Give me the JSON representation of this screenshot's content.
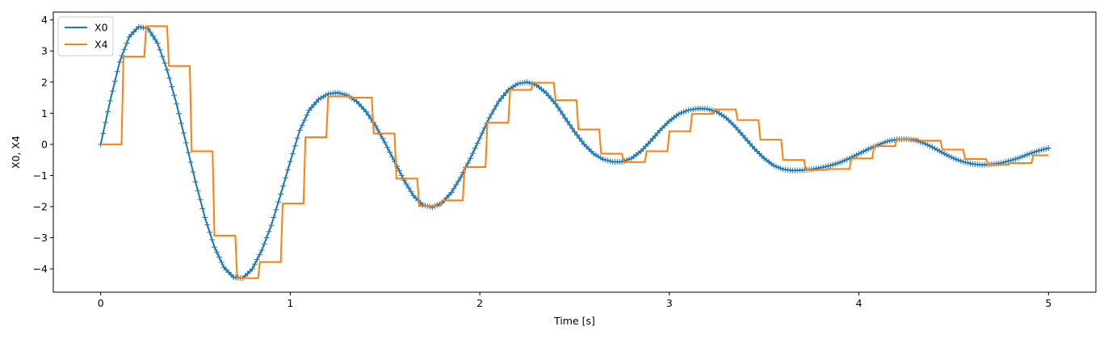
{
  "chart_data": {
    "type": "line",
    "title": "",
    "xlabel": "Time [s]",
    "ylabel": "X0, X4",
    "xlim": [
      -0.25,
      5.25
    ],
    "ylim": [
      -4.75,
      4.25
    ],
    "xticks": [
      0,
      1,
      2,
      3,
      4,
      5
    ],
    "yticks": [
      -4,
      -3,
      -2,
      -1,
      0,
      1,
      2,
      3,
      4
    ],
    "xtick_labels": [
      "0",
      "1",
      "2",
      "3",
      "4",
      "5"
    ],
    "ytick_labels": [
      "−4",
      "−3",
      "−2",
      "−1",
      "0",
      "1",
      "2",
      "3",
      "4"
    ],
    "grid": false,
    "legend_position": "top-left",
    "series": [
      {
        "name": "X0",
        "style": "line with plus markers",
        "color": "#1f77b4",
        "x": [
          0.0,
          0.05,
          0.1,
          0.15,
          0.2,
          0.25,
          0.3,
          0.35,
          0.4,
          0.45,
          0.5,
          0.55,
          0.6,
          0.65,
          0.7,
          0.75,
          0.8,
          0.85,
          0.9,
          0.95,
          1.0,
          1.05,
          1.1,
          1.15,
          1.2,
          1.25,
          1.3,
          1.35,
          1.4,
          1.45,
          1.5,
          1.55,
          1.6,
          1.65,
          1.7,
          1.75,
          1.8,
          1.85,
          1.9,
          1.95,
          2.0,
          2.05,
          2.1,
          2.15,
          2.2,
          2.25,
          2.3,
          2.35,
          2.4,
          2.45,
          2.5,
          2.55,
          2.6,
          2.65,
          2.7,
          2.75,
          2.8,
          2.85,
          2.9,
          2.95,
          3.0,
          3.05,
          3.1,
          3.15,
          3.2,
          3.25,
          3.3,
          3.35,
          3.4,
          3.45,
          3.5,
          3.55,
          3.6,
          3.65,
          3.7,
          3.75,
          3.8,
          3.85,
          3.9,
          3.95,
          4.0,
          4.05,
          4.1,
          4.15,
          4.2,
          4.25,
          4.3,
          4.35,
          4.4,
          4.45,
          4.5,
          4.55,
          4.6,
          4.65,
          4.7,
          4.75,
          4.8,
          4.85,
          4.9,
          4.95,
          5.0
        ],
        "values": [
          0.0,
          1.4,
          2.65,
          3.45,
          3.78,
          3.72,
          3.25,
          2.4,
          1.3,
          0.05,
          -1.2,
          -2.35,
          -3.3,
          -3.95,
          -4.27,
          -4.3,
          -4.0,
          -3.4,
          -2.6,
          -1.6,
          -0.55,
          0.45,
          1.1,
          1.45,
          1.62,
          1.66,
          1.58,
          1.38,
          1.05,
          0.6,
          0.05,
          -0.55,
          -1.15,
          -1.65,
          -1.95,
          -2.02,
          -1.88,
          -1.55,
          -1.05,
          -0.45,
          0.2,
          0.85,
          1.38,
          1.75,
          1.95,
          2.0,
          1.9,
          1.65,
          1.3,
          0.85,
          0.4,
          0.0,
          -0.3,
          -0.48,
          -0.56,
          -0.56,
          -0.45,
          -0.22,
          0.1,
          0.45,
          0.75,
          0.98,
          1.1,
          1.15,
          1.14,
          1.05,
          0.85,
          0.55,
          0.2,
          -0.15,
          -0.45,
          -0.68,
          -0.8,
          -0.84,
          -0.83,
          -0.8,
          -0.75,
          -0.68,
          -0.58,
          -0.45,
          -0.3,
          -0.15,
          -0.02,
          0.1,
          0.16,
          0.17,
          0.13,
          0.02,
          -0.13,
          -0.3,
          -0.45,
          -0.56,
          -0.63,
          -0.66,
          -0.64,
          -0.6,
          -0.52,
          -0.42,
          -0.3,
          -0.2,
          -0.12
        ]
      },
      {
        "name": "X4",
        "style": "step",
        "color": "#ff7f0e",
        "x": [
          0.0,
          0.12,
          0.24,
          0.36,
          0.48,
          0.6,
          0.72,
          0.84,
          0.96,
          1.08,
          1.2,
          1.32,
          1.44,
          1.56,
          1.68,
          1.8,
          1.92,
          2.04,
          2.16,
          2.28,
          2.4,
          2.52,
          2.64,
          2.76,
          2.88,
          3.0,
          3.12,
          3.24,
          3.36,
          3.48,
          3.6,
          3.72,
          3.84,
          3.96,
          4.08,
          4.2,
          4.32,
          4.44,
          4.56,
          4.68,
          4.8,
          4.92,
          5.0
        ],
        "values": [
          0.0,
          2.82,
          3.8,
          2.52,
          -0.22,
          -2.93,
          -4.3,
          -3.78,
          -1.9,
          0.23,
          1.54,
          1.5,
          0.35,
          -1.1,
          -1.98,
          -1.8,
          -0.73,
          0.7,
          1.75,
          1.98,
          1.42,
          0.48,
          -0.3,
          -0.57,
          -0.22,
          0.42,
          0.98,
          1.12,
          0.78,
          0.15,
          -0.5,
          -0.82,
          -0.79,
          -0.45,
          -0.06,
          0.17,
          0.12,
          -0.17,
          -0.47,
          -0.65,
          -0.6,
          -0.35,
          -0.35
        ]
      }
    ]
  }
}
